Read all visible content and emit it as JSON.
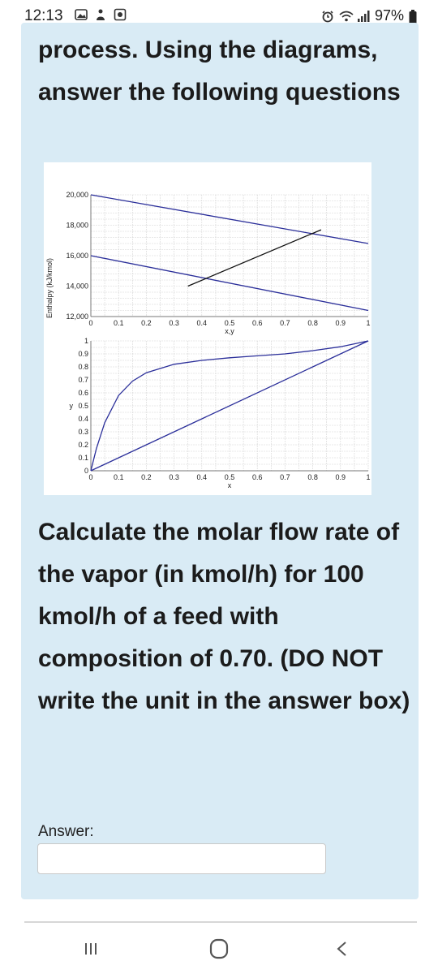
{
  "status_bar": {
    "time": "12:13",
    "battery": "97%",
    "left_icons": [
      "gallery-icon",
      "notification-icon",
      "app-icon"
    ],
    "right_icons": [
      "alarm-icon",
      "wifi-icon",
      "signal-icon",
      "battery-icon"
    ]
  },
  "heading": "process. Using the diagrams, answer the following questions",
  "question": "Calculate the molar flow rate of the vapor (in kmol/h) for 100 kmol/h of a feed with composition of 0.70. (DO NOT write the unit in the answer box)",
  "answer": {
    "label": "Answer:",
    "value": "",
    "placeholder": ""
  },
  "nav_bar": {
    "buttons": [
      "recent-apps-icon",
      "home-icon",
      "back-icon"
    ]
  },
  "chart_data": [
    {
      "type": "line",
      "title": "",
      "xlabel": "x,y",
      "ylabel": "Enthalpy (kJ/kmol)",
      "xlim": [
        0,
        1
      ],
      "ylim": [
        12000,
        20000
      ],
      "x_ticks": [
        "0",
        "0.1",
        "0.2",
        "0.3",
        "0.4",
        "0.5",
        "0.6",
        "0.7",
        "0.8",
        "0.9",
        "1"
      ],
      "y_ticks": [
        "12,000",
        "14,000",
        "16,000",
        "18,000",
        "20,000"
      ],
      "grid": true,
      "series": [
        {
          "color": "#2b2f9a",
          "points": [
            [
              0,
              20000
            ],
            [
              1,
              16800
            ]
          ]
        },
        {
          "color": "#2b2f9a",
          "points": [
            [
              0,
              16000
            ],
            [
              1,
              12400
            ]
          ]
        },
        {
          "color": "#111111",
          "points": [
            [
              0.35,
              14000
            ],
            [
              0.83,
              17700
            ]
          ]
        }
      ]
    },
    {
      "type": "line",
      "title": "",
      "xlabel": "x",
      "ylabel": "y",
      "xlim": [
        0,
        1
      ],
      "ylim": [
        0,
        1
      ],
      "x_ticks": [
        "0",
        "0.1",
        "0.2",
        "0.3",
        "0.4",
        "0.5",
        "0.6",
        "0.7",
        "0.8",
        "0.9",
        "1"
      ],
      "y_ticks": [
        "0",
        "0.1",
        "0.2",
        "0.3",
        "0.4",
        "0.5",
        "0.6",
        "0.7",
        "0.8",
        "0.9",
        "1"
      ],
      "grid": true,
      "series": [
        {
          "color": "#2b2f9a",
          "points": [
            [
              0,
              0
            ],
            [
              0.02,
              0.17
            ],
            [
              0.05,
              0.37
            ],
            [
              0.1,
              0.58
            ],
            [
              0.15,
              0.69
            ],
            [
              0.2,
              0.755
            ],
            [
              0.3,
              0.82
            ],
            [
              0.4,
              0.85
            ],
            [
              0.5,
              0.87
            ],
            [
              0.6,
              0.885
            ],
            [
              0.7,
              0.9
            ],
            [
              0.8,
              0.925
            ],
            [
              0.9,
              0.955
            ],
            [
              1,
              1
            ]
          ]
        },
        {
          "color": "#2b2f9a",
          "points": [
            [
              0,
              0
            ],
            [
              1,
              1
            ]
          ]
        }
      ]
    }
  ]
}
